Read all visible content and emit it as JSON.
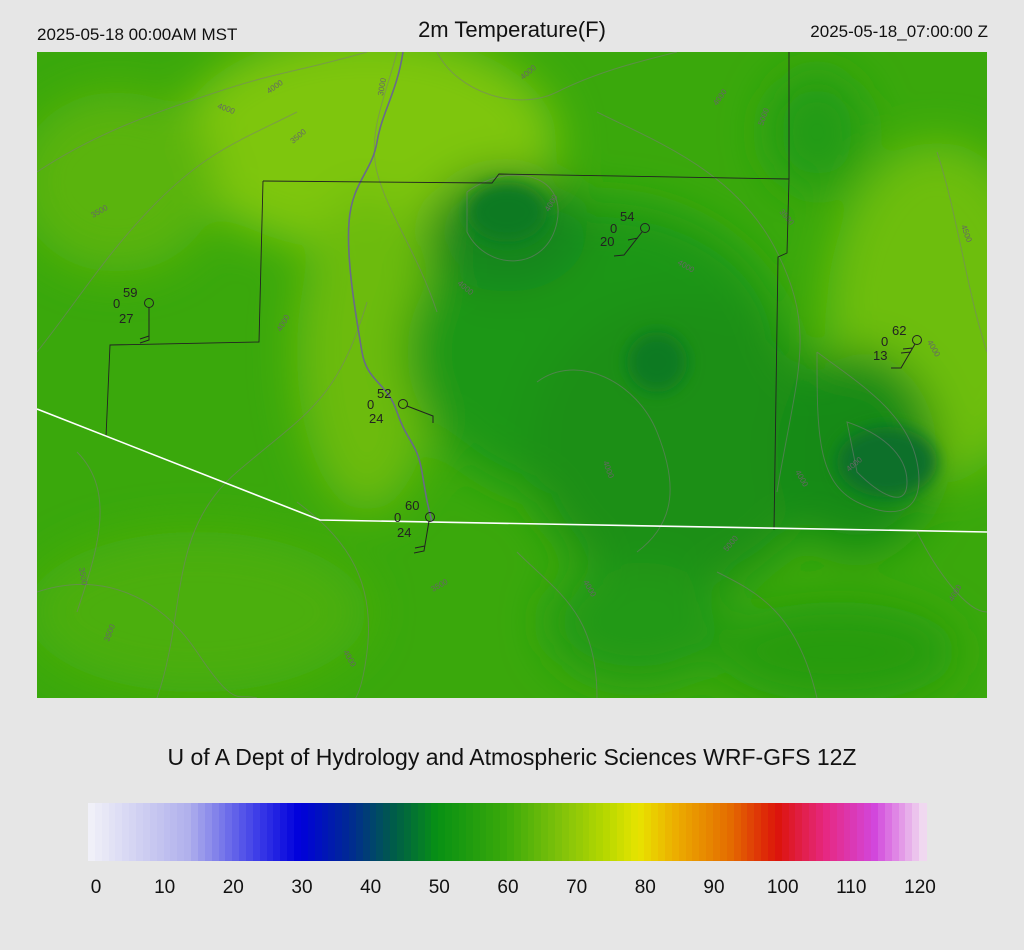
{
  "header": {
    "left": "2025-05-18 00:00AM MST",
    "center": "2m Temperature(F)",
    "right": "2025-05-18_07:00:00 Z"
  },
  "credit": "U of A Dept of Hydrology and Atmospheric Sciences WRF-GFS 12Z",
  "colorbar": {
    "ticks": [
      "0",
      "10",
      "20",
      "30",
      "40",
      "50",
      "60",
      "70",
      "80",
      "90",
      "100",
      "110",
      "120"
    ]
  },
  "contour_labels": [
    "4000",
    "4000",
    "3500",
    "3500",
    "3000",
    "4000",
    "4000",
    "4000",
    "4000",
    "4000",
    "5000",
    "3500",
    "4500",
    "4000",
    "4000",
    "4000",
    "4000",
    "4000",
    "3500",
    "3500",
    "3500",
    "4000",
    "5000",
    "4000",
    "4000"
  ],
  "stations": [
    {
      "temp": "59",
      "precip": "0",
      "dew": "27"
    },
    {
      "temp": "54",
      "precip": "0",
      "dew": "20"
    },
    {
      "temp": "52",
      "precip": "0",
      "dew": "24"
    },
    {
      "temp": "60",
      "precip": "0",
      "dew": "24"
    },
    {
      "temp": "62",
      "precip": "0",
      "dew": "13"
    }
  ]
}
